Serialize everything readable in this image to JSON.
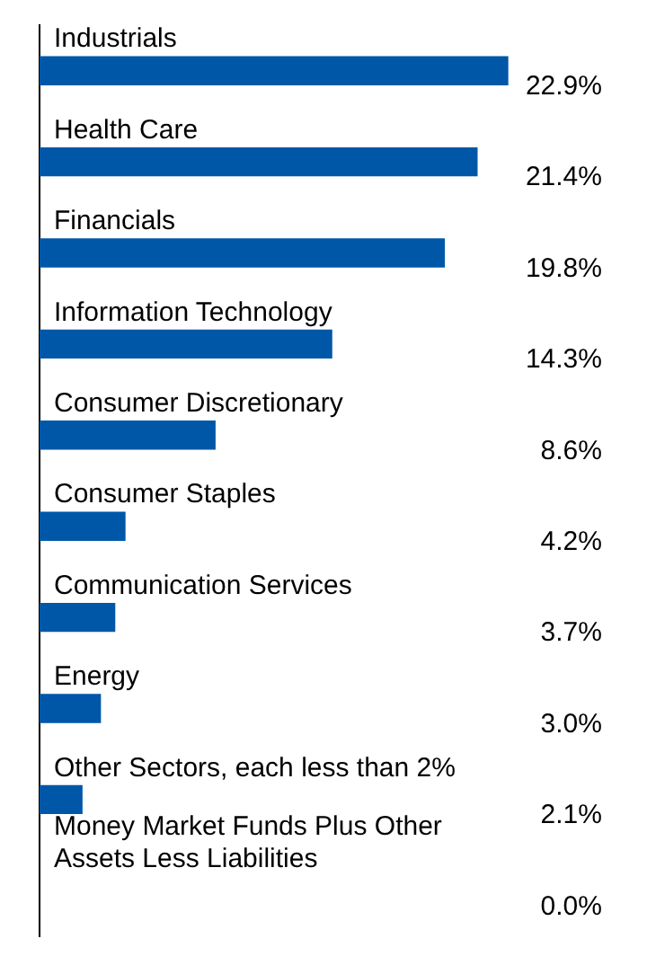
{
  "chart_data": {
    "type": "bar",
    "orientation": "horizontal",
    "categories": [
      "Industrials",
      "Health Care",
      "Financials",
      "Information Technology",
      "Consumer Discretionary",
      "Consumer Staples",
      "Communication Services",
      "Energy",
      "Other Sectors, each less than 2%",
      "Money Market Funds Plus Other Assets Less Liabilities"
    ],
    "values": [
      22.9,
      21.4,
      19.8,
      14.3,
      8.6,
      4.2,
      3.7,
      3.0,
      2.1,
      0.0
    ],
    "value_labels": [
      "22.9%",
      "21.4%",
      "19.8%",
      "14.3%",
      "8.6%",
      "4.2%",
      "3.7%",
      "3.0%",
      "2.1%",
      "0.0%"
    ],
    "color": "#0057a8",
    "legend": false
  }
}
